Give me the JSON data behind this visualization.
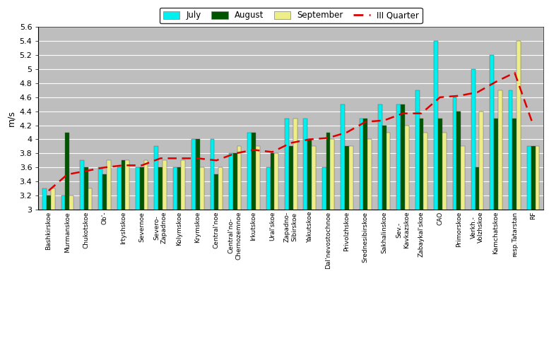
{
  "categories": [
    "Bashkirskoe",
    "Murmanskoe",
    "Chukotskoe",
    "Ob'-",
    "Irtyshskoe",
    "Severnoe",
    "Severo-\nZapadnoe",
    "Kolymskoe",
    "Krymskoe",
    "Central'noe",
    "Central'no-\nChernozemnoe",
    "Irkutskoe",
    "Ural'skoe",
    "Zapadno-\nSibirskoe",
    "Yakutskoe",
    "Dal'nevostochnoe",
    "Privolzhskoe",
    "Srednesibirskoe",
    "Sakhalinskoe",
    "Sev.-\nKavkazskoe",
    "Zabaykal'skoe",
    "CAO",
    "Primorskoe",
    "Verkh.-\nVolzhskoe",
    "Kamchatskoe",
    "resp.Tatarstan",
    "RF"
  ],
  "july": [
    3.3,
    3.2,
    3.7,
    3.6,
    3.6,
    3.6,
    3.9,
    3.6,
    4.0,
    4.0,
    3.8,
    4.1,
    3.6,
    4.3,
    4.3,
    3.6,
    4.5,
    4.3,
    4.5,
    4.5,
    4.7,
    5.4,
    4.6,
    5.0,
    5.2,
    4.7,
    3.9
  ],
  "august": [
    3.2,
    4.1,
    3.6,
    3.5,
    3.7,
    3.6,
    3.6,
    3.6,
    4.0,
    3.5,
    3.8,
    4.1,
    3.8,
    3.9,
    4.0,
    4.1,
    3.9,
    4.3,
    4.2,
    4.5,
    4.3,
    4.3,
    4.4,
    3.6,
    4.3,
    4.3,
    3.9
  ],
  "september": [
    3.3,
    3.2,
    3.3,
    3.7,
    3.7,
    3.7,
    3.7,
    3.7,
    3.6,
    3.6,
    3.9,
    3.9,
    3.8,
    4.3,
    3.9,
    4.0,
    3.9,
    4.0,
    4.1,
    4.2,
    4.1,
    4.1,
    3.9,
    4.4,
    4.7,
    5.4,
    3.9
  ],
  "iii_quarter": [
    3.27,
    3.5,
    3.55,
    3.6,
    3.63,
    3.63,
    3.73,
    3.73,
    3.73,
    3.7,
    3.8,
    3.85,
    3.82,
    3.95,
    4.0,
    4.02,
    4.1,
    4.25,
    4.27,
    4.37,
    4.37,
    4.6,
    4.62,
    4.67,
    4.82,
    4.95,
    4.2
  ],
  "july_color": "#00EFEF",
  "august_color": "#005500",
  "september_color": "#EEEE88",
  "iii_quarter_color": "#DD0000",
  "bg_color": "#BEBEBE",
  "ylabel": "m/s",
  "ylim_min": 3.0,
  "ylim_max": 5.6,
  "yticks": [
    3.0,
    3.2,
    3.4,
    3.6,
    3.8,
    4.0,
    4.2,
    4.4,
    4.6,
    4.8,
    5.0,
    5.2,
    5.4,
    5.6
  ]
}
